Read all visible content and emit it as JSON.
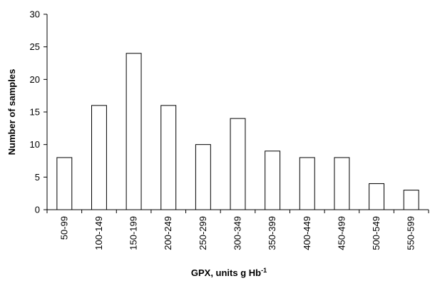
{
  "chart_data": {
    "type": "bar",
    "xlabel": "GPX, units g Hb",
    "xlabel_superscript": "-1",
    "ylabel": "Number of samples",
    "ylim": [
      0,
      30
    ],
    "yticks": [
      "0",
      "5",
      "10",
      "15",
      "20",
      "25",
      "30"
    ],
    "grid": false,
    "categories": [
      "50-99",
      "100-149",
      "150-199",
      "200-249",
      "250-299",
      "300-349",
      "350-399",
      "400-449",
      "450-499",
      "500-549",
      "550-599"
    ],
    "values": [
      8,
      16,
      24,
      16,
      10,
      14,
      9,
      8,
      8,
      4,
      3
    ],
    "colors": {
      "bar_fill": "#ffffff",
      "bar_stroke": "#000000",
      "axis": "#000000"
    }
  }
}
